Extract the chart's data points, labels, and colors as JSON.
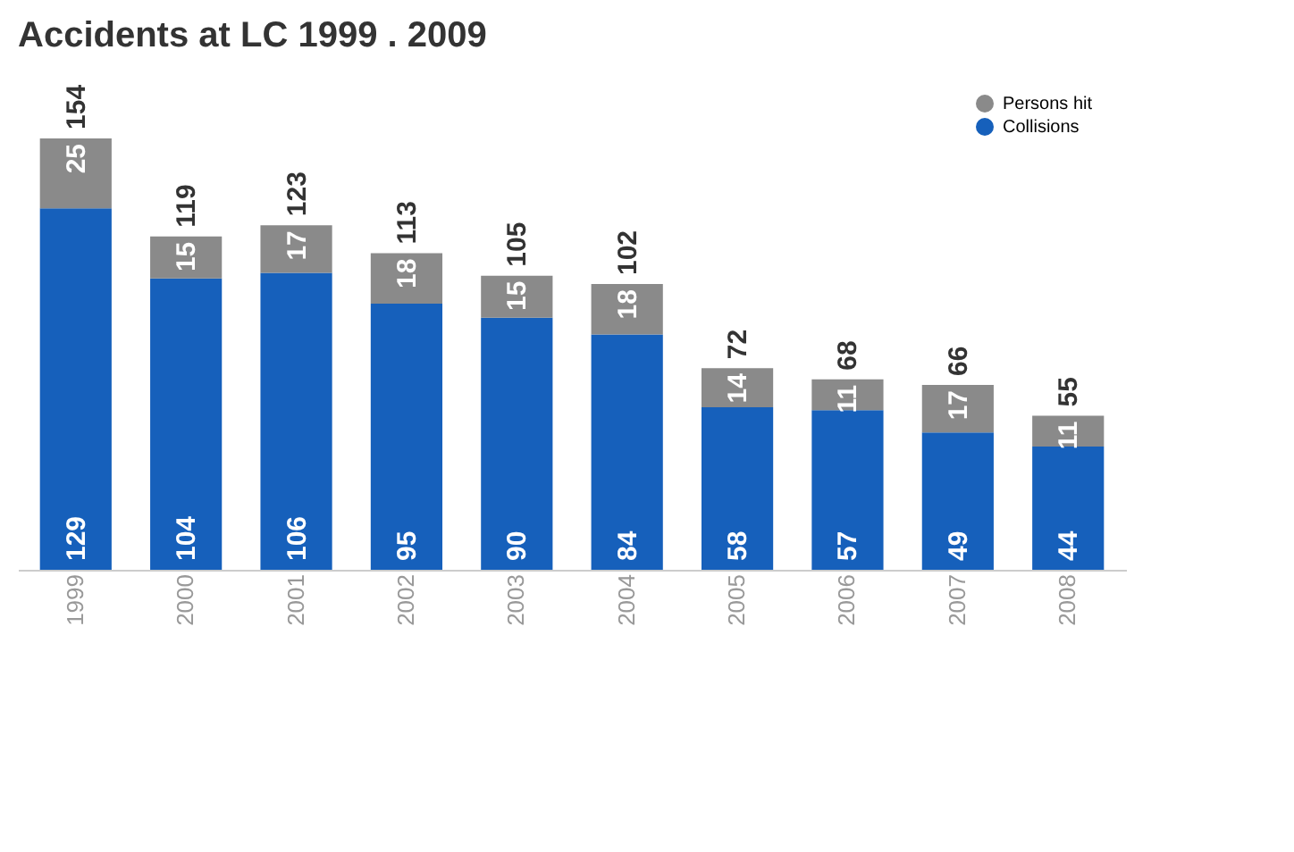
{
  "chart_data": {
    "type": "bar",
    "title": "Accidents at LC 1999 . 2009",
    "stacked": true,
    "data_labels": true,
    "legend": "top right",
    "grid": false,
    "categories": [
      "1999",
      "2000",
      "2001",
      "2002",
      "2003",
      "2004",
      "2005",
      "2006",
      "2007",
      "2008"
    ],
    "series": [
      {
        "name": "Collisions",
        "color": "#1660bb",
        "values": [
          129,
          104,
          106,
          95,
          90,
          84,
          58,
          57,
          49,
          44
        ]
      },
      {
        "name": "Persons hit",
        "color": "#8a8a8a",
        "values": [
          25,
          15,
          17,
          18,
          15,
          18,
          14,
          11,
          17,
          11
        ]
      }
    ],
    "totals": [
      "154",
      "119",
      "123",
      "113",
      "105",
      "102",
      "72",
      "68",
      "66",
      "55"
    ]
  }
}
